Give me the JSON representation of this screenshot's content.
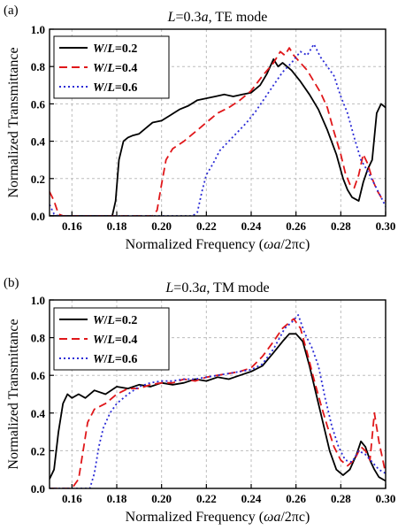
{
  "chart_data": [
    {
      "type": "line",
      "panel_label": "(a)",
      "title_parts": [
        "L",
        "=0.3",
        "a",
        ", TE mode"
      ],
      "title_italic": [
        true,
        false,
        true,
        false
      ],
      "xlabel_parts": [
        "Normalized Frequency (",
        "ωa",
        "/2πc)"
      ],
      "xlabel_italic": [
        false,
        true,
        false
      ],
      "ylabel": "Normalized Transmittance",
      "xlim": [
        0.15,
        0.3
      ],
      "ylim": [
        0.0,
        1.0
      ],
      "xticks": [
        0.16,
        0.18,
        0.2,
        0.22,
        0.24,
        0.26,
        0.28,
        0.3
      ],
      "xtick_labels": [
        "0.16",
        "0.18",
        "0.20",
        "0.22",
        "0.24",
        "0.26",
        "0.28",
        "0.30"
      ],
      "yticks": [
        0.0,
        0.2,
        0.4,
        0.6,
        0.8,
        1.0
      ],
      "ytick_labels": [
        "0.0",
        "0.2",
        "0.4",
        "0.6",
        "0.8",
        "1.0"
      ],
      "grid": true,
      "legend_position": "top-left",
      "series": [
        {
          "legend": [
            "W",
            "/",
            "L",
            "=0.2"
          ],
          "color": "#000000",
          "dash": "solid",
          "x": [
            0.15,
            0.152,
            0.154,
            0.156,
            0.16,
            0.17,
            0.178,
            0.1795,
            0.181,
            0.183,
            0.185,
            0.187,
            0.19,
            0.193,
            0.196,
            0.2,
            0.204,
            0.208,
            0.212,
            0.216,
            0.22,
            0.224,
            0.228,
            0.232,
            0.236,
            0.24,
            0.244,
            0.247,
            0.25,
            0.252,
            0.254,
            0.256,
            0.258,
            0.262,
            0.266,
            0.27,
            0.274,
            0.278,
            0.281,
            0.283,
            0.285,
            0.288,
            0.29,
            0.292,
            0.294,
            0.296,
            0.298,
            0.3
          ],
          "y": [
            0.0,
            0.0,
            0.0,
            0.0,
            0.0,
            0.0,
            0.0,
            0.08,
            0.3,
            0.4,
            0.42,
            0.43,
            0.44,
            0.47,
            0.5,
            0.51,
            0.54,
            0.57,
            0.59,
            0.62,
            0.63,
            0.64,
            0.65,
            0.64,
            0.65,
            0.66,
            0.7,
            0.76,
            0.84,
            0.8,
            0.82,
            0.8,
            0.78,
            0.72,
            0.65,
            0.57,
            0.46,
            0.33,
            0.2,
            0.14,
            0.1,
            0.08,
            0.18,
            0.25,
            0.3,
            0.55,
            0.6,
            0.58
          ]
        },
        {
          "legend": [
            "W",
            "/",
            "L",
            "=0.4"
          ],
          "color": "#e0171a",
          "dash": "9,5",
          "x": [
            0.15,
            0.152,
            0.154,
            0.156,
            0.16,
            0.17,
            0.18,
            0.19,
            0.196,
            0.198,
            0.2,
            0.202,
            0.205,
            0.21,
            0.215,
            0.22,
            0.225,
            0.23,
            0.235,
            0.24,
            0.245,
            0.25,
            0.253,
            0.255,
            0.257,
            0.259,
            0.262,
            0.265,
            0.268,
            0.271,
            0.274,
            0.277,
            0.28,
            0.282,
            0.284,
            0.286,
            0.288,
            0.29,
            0.292,
            0.294,
            0.296,
            0.298,
            0.3
          ],
          "y": [
            0.13,
            0.08,
            0.01,
            0.0,
            0.0,
            0.0,
            0.0,
            0.0,
            0.0,
            0.03,
            0.17,
            0.3,
            0.36,
            0.4,
            0.45,
            0.5,
            0.55,
            0.58,
            0.62,
            0.67,
            0.75,
            0.82,
            0.88,
            0.86,
            0.9,
            0.86,
            0.82,
            0.78,
            0.72,
            0.66,
            0.58,
            0.45,
            0.33,
            0.23,
            0.17,
            0.15,
            0.22,
            0.33,
            0.28,
            0.2,
            0.14,
            0.1,
            0.08
          ]
        },
        {
          "legend": [
            "W",
            "/",
            "L",
            "=0.6"
          ],
          "color": "#2b2bd6",
          "dash": "2,3",
          "x": [
            0.15,
            0.152,
            0.154,
            0.156,
            0.16,
            0.17,
            0.18,
            0.19,
            0.2,
            0.21,
            0.214,
            0.216,
            0.218,
            0.22,
            0.223,
            0.226,
            0.23,
            0.234,
            0.238,
            0.242,
            0.246,
            0.25,
            0.254,
            0.258,
            0.262,
            0.265,
            0.268,
            0.271,
            0.274,
            0.277,
            0.28,
            0.283,
            0.286,
            0.289,
            0.292,
            0.295,
            0.298,
            0.3
          ],
          "y": [
            0.06,
            0.01,
            0.0,
            0.0,
            0.0,
            0.0,
            0.0,
            0.0,
            0.0,
            0.0,
            0.0,
            0.02,
            0.13,
            0.22,
            0.28,
            0.35,
            0.4,
            0.45,
            0.5,
            0.56,
            0.63,
            0.7,
            0.77,
            0.82,
            0.88,
            0.86,
            0.92,
            0.85,
            0.8,
            0.75,
            0.64,
            0.55,
            0.42,
            0.3,
            0.24,
            0.17,
            0.1,
            0.05
          ]
        }
      ]
    },
    {
      "type": "line",
      "panel_label": "(b)",
      "title_parts": [
        "L",
        "=0.3",
        "a",
        ", TM mode"
      ],
      "title_italic": [
        true,
        false,
        true,
        false
      ],
      "xlabel_parts": [
        "Normalized Frequency (",
        "ωa",
        "/2πc)"
      ],
      "xlabel_italic": [
        false,
        true,
        false
      ],
      "ylabel": "Normalized Transmittance",
      "xlim": [
        0.15,
        0.3
      ],
      "ylim": [
        0.0,
        1.0
      ],
      "xticks": [
        0.16,
        0.18,
        0.2,
        0.22,
        0.24,
        0.26,
        0.28,
        0.3
      ],
      "xtick_labels": [
        "0.16",
        "0.18",
        "0.20",
        "0.22",
        "0.24",
        "0.26",
        "0.28",
        "0.30"
      ],
      "yticks": [
        0.0,
        0.2,
        0.4,
        0.6,
        0.8,
        1.0
      ],
      "ytick_labels": [
        "0.0",
        "0.2",
        "0.4",
        "0.6",
        "0.8",
        "1.0"
      ],
      "grid": true,
      "legend_position": "top-left",
      "series": [
        {
          "legend": [
            "W",
            "/",
            "L",
            "=0.2"
          ],
          "color": "#000000",
          "dash": "solid",
          "x": [
            0.15,
            0.152,
            0.154,
            0.156,
            0.158,
            0.16,
            0.163,
            0.166,
            0.17,
            0.175,
            0.18,
            0.185,
            0.19,
            0.195,
            0.2,
            0.205,
            0.21,
            0.215,
            0.22,
            0.225,
            0.23,
            0.235,
            0.24,
            0.245,
            0.25,
            0.254,
            0.257,
            0.26,
            0.263,
            0.266,
            0.269,
            0.272,
            0.275,
            0.278,
            0.281,
            0.284,
            0.287,
            0.289,
            0.291,
            0.293,
            0.295,
            0.297,
            0.3
          ],
          "y": [
            0.05,
            0.1,
            0.3,
            0.45,
            0.5,
            0.48,
            0.5,
            0.48,
            0.52,
            0.5,
            0.54,
            0.53,
            0.55,
            0.54,
            0.56,
            0.55,
            0.56,
            0.58,
            0.57,
            0.59,
            0.58,
            0.6,
            0.62,
            0.65,
            0.72,
            0.78,
            0.82,
            0.82,
            0.78,
            0.65,
            0.5,
            0.35,
            0.2,
            0.1,
            0.07,
            0.1,
            0.18,
            0.25,
            0.22,
            0.15,
            0.1,
            0.06,
            0.04
          ]
        },
        {
          "legend": [
            "W",
            "/",
            "L",
            "=0.4"
          ],
          "color": "#e0171a",
          "dash": "9,5",
          "x": [
            0.15,
            0.155,
            0.16,
            0.163,
            0.165,
            0.167,
            0.17,
            0.175,
            0.18,
            0.185,
            0.19,
            0.195,
            0.2,
            0.205,
            0.21,
            0.215,
            0.22,
            0.225,
            0.23,
            0.235,
            0.24,
            0.245,
            0.25,
            0.254,
            0.257,
            0.259,
            0.262,
            0.265,
            0.268,
            0.271,
            0.274,
            0.277,
            0.28,
            0.283,
            0.286,
            0.289,
            0.291,
            0.293,
            0.295,
            0.297,
            0.3
          ],
          "y": [
            0.0,
            0.0,
            0.0,
            0.05,
            0.2,
            0.35,
            0.42,
            0.45,
            0.5,
            0.53,
            0.53,
            0.55,
            0.56,
            0.56,
            0.58,
            0.57,
            0.59,
            0.6,
            0.61,
            0.62,
            0.64,
            0.7,
            0.78,
            0.85,
            0.88,
            0.9,
            0.85,
            0.72,
            0.58,
            0.45,
            0.33,
            0.22,
            0.15,
            0.12,
            0.15,
            0.22,
            0.2,
            0.15,
            0.4,
            0.25,
            0.08
          ]
        },
        {
          "legend": [
            "W",
            "/",
            "L",
            "=0.6"
          ],
          "color": "#2b2bd6",
          "dash": "2,3",
          "x": [
            0.15,
            0.16,
            0.168,
            0.17,
            0.172,
            0.174,
            0.177,
            0.18,
            0.185,
            0.19,
            0.195,
            0.2,
            0.205,
            0.21,
            0.215,
            0.22,
            0.225,
            0.23,
            0.235,
            0.24,
            0.245,
            0.25,
            0.255,
            0.258,
            0.261,
            0.264,
            0.267,
            0.27,
            0.273,
            0.276,
            0.279,
            0.282,
            0.285,
            0.288,
            0.291,
            0.294,
            0.297,
            0.3
          ],
          "y": [
            0.0,
            0.0,
            0.0,
            0.08,
            0.22,
            0.32,
            0.4,
            0.45,
            0.5,
            0.54,
            0.56,
            0.57,
            0.57,
            0.58,
            0.58,
            0.59,
            0.6,
            0.61,
            0.62,
            0.63,
            0.66,
            0.74,
            0.85,
            0.88,
            0.92,
            0.82,
            0.75,
            0.65,
            0.48,
            0.33,
            0.22,
            0.15,
            0.14,
            0.2,
            0.18,
            0.14,
            0.1,
            0.08
          ]
        }
      ]
    }
  ]
}
